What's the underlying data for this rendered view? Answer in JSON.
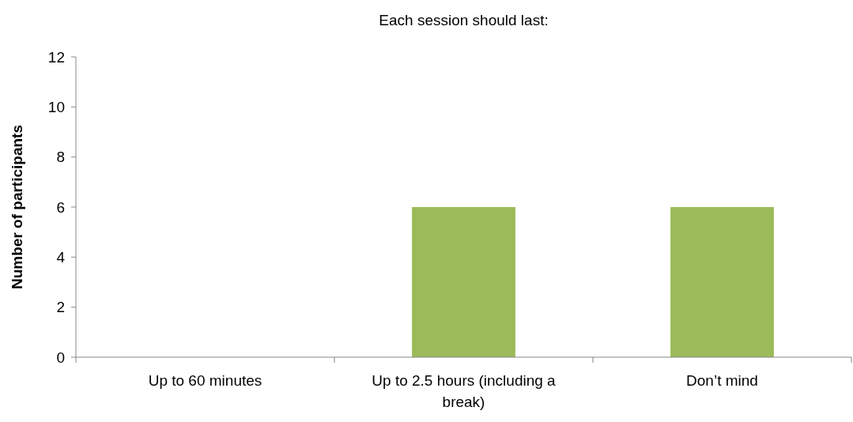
{
  "chart_data": {
    "type": "bar",
    "title": "Each session should last:",
    "ylabel": "Number of participants",
    "categories": [
      "Up to 60 minutes",
      "Up to 2.5 hours (including a break)",
      "Don’t mind"
    ],
    "values": [
      0,
      6,
      6
    ],
    "color": "#9bbb59",
    "ylim": [
      0,
      12
    ],
    "yticks": [
      0,
      2,
      4,
      6,
      8,
      10,
      12
    ],
    "grid": false
  }
}
